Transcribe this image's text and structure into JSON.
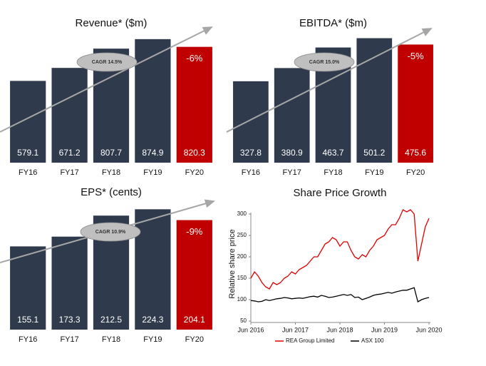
{
  "chart_data": [
    {
      "type": "bar",
      "title": "Revenue* ($m)",
      "categories": [
        "FY16",
        "FY17",
        "FY18",
        "FY19",
        "FY20"
      ],
      "values": [
        579.1,
        671.2,
        807.7,
        874.9,
        820.3
      ],
      "colors": [
        "#2f3a4c",
        "#2f3a4c",
        "#2f3a4c",
        "#2f3a4c",
        "#c00000"
      ],
      "ylim": [
        0,
        950
      ],
      "cagr": "CAGR 14.5%",
      "change": "-6%"
    },
    {
      "type": "bar",
      "title": "EBITDA* ($m)",
      "categories": [
        "FY16",
        "FY17",
        "FY18",
        "FY19",
        "FY20"
      ],
      "values": [
        327.8,
        380.9,
        463.7,
        501.2,
        475.6
      ],
      "colors": [
        "#2f3a4c",
        "#2f3a4c",
        "#2f3a4c",
        "#2f3a4c",
        "#c00000"
      ],
      "ylim": [
        0,
        540
      ],
      "cagr": "CAGR 15.0%",
      "change": "-5%"
    },
    {
      "type": "bar",
      "title": "EPS* (cents)",
      "categories": [
        "FY16",
        "FY17",
        "FY18",
        "FY19",
        "FY20"
      ],
      "values": [
        155.1,
        173.3,
        212.5,
        224.3,
        204.1
      ],
      "colors": [
        "#2f3a4c",
        "#2f3a4c",
        "#2f3a4c",
        "#2f3a4c",
        "#c00000"
      ],
      "ylim": [
        0,
        250
      ],
      "cagr": "CAGR 10.9%",
      "change": "-9%"
    },
    {
      "type": "line",
      "title": "Share Price Growth",
      "y_label": "Relative share price",
      "x": [
        "2016-06",
        "2016-07",
        "2016-08",
        "2016-09",
        "2016-10",
        "2016-11",
        "2016-12",
        "2017-01",
        "2017-02",
        "2017-03",
        "2017-04",
        "2017-05",
        "2017-06",
        "2017-07",
        "2017-08",
        "2017-09",
        "2017-10",
        "2017-11",
        "2017-12",
        "2018-01",
        "2018-02",
        "2018-03",
        "2018-04",
        "2018-05",
        "2018-06",
        "2018-07",
        "2018-08",
        "2018-09",
        "2018-10",
        "2018-11",
        "2018-12",
        "2019-01",
        "2019-02",
        "2019-03",
        "2019-04",
        "2019-05",
        "2019-06",
        "2019-07",
        "2019-08",
        "2019-09",
        "2019-10",
        "2019-11",
        "2019-12",
        "2020-01",
        "2020-02",
        "2020-03",
        "2020-04",
        "2020-05",
        "2020-06"
      ],
      "series": [
        {
          "name": "REA Group Limited",
          "color": "#e00000",
          "values": [
            150,
            165,
            155,
            140,
            130,
            125,
            140,
            135,
            140,
            150,
            155,
            165,
            160,
            170,
            175,
            180,
            190,
            200,
            200,
            215,
            230,
            235,
            245,
            240,
            225,
            235,
            235,
            215,
            200,
            195,
            205,
            200,
            215,
            225,
            240,
            245,
            250,
            265,
            275,
            275,
            290,
            310,
            305,
            310,
            300,
            190,
            230,
            270,
            290
          ]
        },
        {
          "name": "ASX 100",
          "color": "#000000",
          "values": [
            98,
            97,
            95,
            96,
            100,
            98,
            100,
            102,
            103,
            105,
            104,
            102,
            103,
            104,
            103,
            105,
            107,
            108,
            106,
            110,
            108,
            105,
            106,
            108,
            110,
            112,
            110,
            112,
            105,
            106,
            100,
            103,
            106,
            110,
            112,
            113,
            115,
            117,
            115,
            118,
            120,
            122,
            122,
            125,
            128,
            95,
            100,
            103,
            105
          ]
        }
      ],
      "xlim": [
        "2016-06",
        "2020-06"
      ],
      "xticks": [
        {
          "value": "2016-06",
          "label": "Jun 2016"
        },
        {
          "value": "2017-06",
          "label": "Jun 2017"
        },
        {
          "value": "2018-06",
          "label": "Jun 2018"
        },
        {
          "value": "2019-06",
          "label": "Jun 2019"
        },
        {
          "value": "2020-06",
          "label": "Jun 2020"
        }
      ],
      "ylim": [
        50,
        300
      ],
      "yticks": [
        50,
        100,
        150,
        200,
        250,
        300
      ]
    }
  ]
}
